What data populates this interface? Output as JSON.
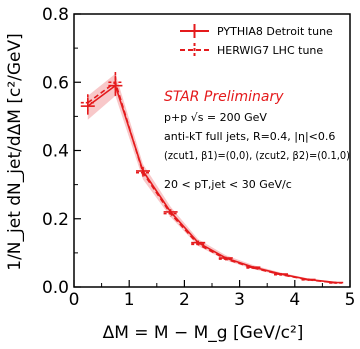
{
  "chart_data": {
    "type": "line",
    "xlabel": "ΔM = M − M_g [GeV/c²]",
    "ylabel": "1/N_jet dN_jet/dΔM [c²/GeV]",
    "xlim": [
      0,
      5
    ],
    "ylim": [
      0,
      0.8
    ],
    "xticks": [
      0,
      1,
      2,
      3,
      4,
      5
    ],
    "yticks": [
      0.0,
      0.2,
      0.4,
      0.6,
      0.8
    ],
    "xtick_labels": [
      "0",
      "1",
      "2",
      "3",
      "4",
      "5"
    ],
    "ytick_labels": [
      "0.0",
      "0.2",
      "0.4",
      "0.6",
      "0.8"
    ],
    "grid": false,
    "legend_position": "top-right",
    "colors": {
      "series": "#e41a1c",
      "band": "#f4a3a5"
    },
    "x": [
      0.25,
      0.75,
      1.25,
      1.75,
      2.25,
      2.75,
      3.25,
      3.75,
      4.25,
      4.75
    ],
    "series": [
      {
        "name": "PYTHIA8 Detroit tune",
        "style": "solid",
        "values": [
          0.53,
          0.59,
          0.34,
          0.22,
          0.13,
          0.085,
          0.058,
          0.038,
          0.022,
          0.013
        ],
        "errors": [
          0.025,
          0.03,
          0.012,
          0.008,
          0.006,
          0.004,
          0.003,
          0.003,
          0.003,
          0.002
        ],
        "band_low": [
          0.49,
          0.56,
          0.315,
          0.205,
          0.12,
          0.078,
          0.052,
          0.034,
          0.019,
          0.01
        ],
        "band_high": [
          0.56,
          0.625,
          0.36,
          0.235,
          0.14,
          0.093,
          0.064,
          0.042,
          0.025,
          0.015
        ]
      },
      {
        "name": "HERWIG7 LHC tune",
        "style": "dashed",
        "values": [
          0.54,
          0.6,
          0.335,
          0.215,
          0.125,
          0.082,
          0.056,
          0.036,
          0.021,
          0.012
        ],
        "errors": [
          0.025,
          0.03,
          0.012,
          0.008,
          0.006,
          0.004,
          0.003,
          0.003,
          0.003,
          0.002
        ]
      }
    ],
    "annotations": [
      "STAR Preliminary",
      "p+p √s = 200 GeV",
      "anti-kT full jets, R=0.4, |η|<0.6",
      "(zcut1, β1)=(0,0), (zcut2, β2)=(0.1,0)",
      "20 < pT,jet < 30 GeV/c"
    ]
  }
}
